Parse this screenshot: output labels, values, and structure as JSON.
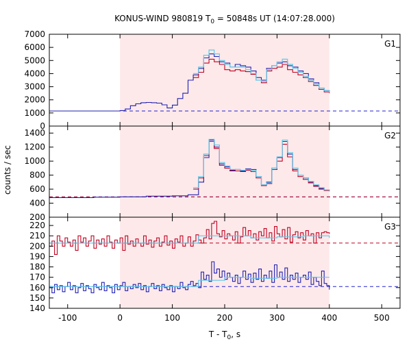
{
  "title": {
    "main": "KONUS-WIND 980819 T",
    "sub": "0",
    "rest": " = 50848s UT (14:07:28.000)"
  },
  "xlabel": {
    "main": "T - T",
    "sub": "0",
    "rest": ", s"
  },
  "ylabel": "counts / sec",
  "colors": {
    "highlight": "#fde9ea",
    "red": "#c00020",
    "blue": "#1f1fb0",
    "fit": "#5ec8ea",
    "bg_blue": "#2020d0",
    "bg_red": "#c00020"
  },
  "chart_data": [
    {
      "type": "line",
      "panel": "G1",
      "xlim": [
        -135,
        535
      ],
      "ylim": [
        0,
        7000
      ],
      "xticks": [
        -100,
        0,
        100,
        200,
        300,
        400,
        500
      ],
      "yticks": [
        0,
        1000,
        2000,
        3000,
        4000,
        5000,
        6000,
        7000
      ],
      "highlight": [
        0,
        400
      ],
      "background": [
        {
          "color": "blue",
          "value": 1150
        }
      ],
      "series": [
        {
          "color": "blue",
          "x": [
            -135,
            -60,
            0,
            10,
            20,
            30,
            40,
            50,
            60,
            70,
            80,
            90,
            100,
            110,
            120,
            130,
            140,
            150,
            160,
            170,
            180,
            190,
            200,
            210,
            220,
            230,
            240,
            250,
            260,
            270,
            280,
            290,
            300,
            310,
            320,
            330,
            340,
            350,
            360,
            370,
            380,
            390,
            400
          ],
          "y": [
            1150,
            1150,
            1180,
            1300,
            1550,
            1700,
            1780,
            1800,
            1780,
            1750,
            1620,
            1380,
            1600,
            2100,
            2500,
            3500,
            3900,
            4400,
            5200,
            5500,
            5300,
            4900,
            4800,
            4500,
            4700,
            4600,
            4500,
            4200,
            3700,
            3500,
            4400,
            4600,
            4800,
            4900,
            4600,
            4500,
            4200,
            4000,
            3600,
            3300,
            2900,
            2700,
            2600
          ]
        },
        {
          "color": "red",
          "x": [
            140,
            150,
            160,
            170,
            180,
            190,
            200,
            210,
            220,
            230,
            240,
            250,
            260,
            270,
            280,
            290,
            300,
            310,
            320,
            330,
            340,
            350,
            360,
            370,
            380,
            390,
            400
          ],
          "y": [
            3700,
            4100,
            4800,
            5100,
            4900,
            4700,
            4300,
            4200,
            4300,
            4200,
            4150,
            3950,
            3500,
            3300,
            4200,
            4400,
            4500,
            4700,
            4300,
            4100,
            3900,
            3700,
            3400,
            3100,
            2800,
            2600,
            2500
          ]
        },
        {
          "color": "fit",
          "x": [
            140,
            150,
            160,
            170,
            180,
            190,
            200,
            210,
            220,
            230,
            240,
            250,
            260,
            270,
            280,
            290,
            300,
            310,
            320,
            330,
            340,
            350,
            360,
            370,
            380,
            390,
            400
          ],
          "y": [
            4000,
            4500,
            5400,
            5800,
            5500,
            5000,
            4700,
            4500,
            4500,
            4500,
            4300,
            4000,
            3500,
            3400,
            4300,
            4600,
            4900,
            5100,
            4700,
            4400,
            4100,
            3800,
            3500,
            3200,
            2900,
            2700,
            2550
          ]
        }
      ]
    },
    {
      "type": "line",
      "panel": "G2",
      "xlim": [
        -135,
        535
      ],
      "ylim": [
        200,
        1500
      ],
      "xticks": [
        -100,
        0,
        100,
        200,
        300,
        400,
        500
      ],
      "yticks": [
        200,
        400,
        600,
        800,
        1000,
        1200,
        1400
      ],
      "highlight": [
        0,
        400
      ],
      "background": [
        {
          "color": "blue",
          "value": 490
        },
        {
          "color": "red",
          "value": 490
        }
      ],
      "series": [
        {
          "color": "blue",
          "x": [
            -135,
            -50,
            0,
            50,
            100,
            130,
            150,
            160,
            170,
            180,
            190,
            200,
            210,
            220,
            230,
            240,
            250,
            260,
            270,
            280,
            290,
            300,
            310,
            320,
            330,
            340,
            350,
            360,
            370,
            380,
            390,
            400
          ],
          "y": [
            480,
            485,
            490,
            500,
            505,
            520,
            700,
            1050,
            1300,
            1200,
            960,
            920,
            870,
            880,
            860,
            890,
            880,
            780,
            660,
            700,
            900,
            1050,
            1280,
            1100,
            880,
            800,
            760,
            700,
            650,
            610,
            590,
            580
          ]
        },
        {
          "color": "red",
          "x": [
            140,
            150,
            160,
            170,
            180,
            190,
            200,
            210,
            220,
            230,
            240,
            250,
            260,
            270,
            280,
            290,
            300,
            310,
            320,
            330,
            340,
            350,
            360,
            370,
            380,
            390,
            400
          ],
          "y": [
            600,
            760,
            1080,
            1280,
            1180,
            940,
            900,
            860,
            860,
            850,
            870,
            850,
            760,
            650,
            680,
            880,
            1000,
            1240,
            1060,
            860,
            780,
            740,
            690,
            640,
            600,
            580,
            570
          ]
        },
        {
          "color": "fit",
          "x": [
            140,
            150,
            160,
            170,
            180,
            190,
            200,
            210,
            220,
            230,
            240,
            250,
            260,
            270,
            280,
            290,
            300,
            310,
            320,
            330,
            340,
            350,
            360,
            370,
            380,
            390,
            400
          ],
          "y": [
            620,
            780,
            1100,
            1310,
            1230,
            980,
            930,
            880,
            880,
            870,
            880,
            870,
            780,
            660,
            690,
            900,
            1060,
            1300,
            1120,
            900,
            800,
            760,
            710,
            660,
            620,
            590,
            575
          ]
        }
      ]
    },
    {
      "type": "line",
      "panel": "G3",
      "xlim": [
        -135,
        535
      ],
      "ylim": [
        140,
        228
      ],
      "xticks": [
        -100,
        0,
        100,
        200,
        300,
        400,
        500
      ],
      "yticks": [
        140,
        150,
        160,
        170,
        180,
        190,
        200,
        210,
        220
      ],
      "highlight": [
        0,
        400
      ],
      "background": [
        {
          "color": "red",
          "value": 203
        },
        {
          "color": "blue",
          "value": 161
        }
      ],
      "series": [
        {
          "color": "red",
          "x": [
            -135,
            -130,
            -125,
            -120,
            -115,
            -110,
            -105,
            -100,
            -95,
            -90,
            -85,
            -80,
            -75,
            -70,
            -65,
            -60,
            -55,
            -50,
            -45,
            -40,
            -35,
            -30,
            -25,
            -20,
            -15,
            -10,
            -5,
            0,
            5,
            10,
            15,
            20,
            25,
            30,
            35,
            40,
            45,
            50,
            55,
            60,
            65,
            70,
            75,
            80,
            85,
            90,
            95,
            100,
            105,
            110,
            115,
            120,
            125,
            130,
            135,
            140,
            145,
            150,
            155,
            160,
            165,
            170,
            175,
            180,
            185,
            190,
            195,
            200,
            205,
            210,
            215,
            220,
            225,
            230,
            235,
            240,
            245,
            250,
            255,
            260,
            265,
            270,
            275,
            280,
            285,
            290,
            295,
            300,
            305,
            310,
            315,
            320,
            325,
            330,
            335,
            340,
            345,
            350,
            355,
            360,
            365,
            370,
            375,
            380,
            385,
            390,
            395,
            400
          ],
          "y": [
            200,
            205,
            192,
            210,
            205,
            200,
            208,
            204,
            200,
            206,
            196,
            210,
            204,
            208,
            200,
            205,
            210,
            198,
            206,
            202,
            207,
            200,
            210,
            204,
            198,
            206,
            203,
            208,
            196,
            210,
            202,
            205,
            200,
            207,
            203,
            200,
            210,
            202,
            206,
            199,
            205,
            208,
            200,
            204,
            210,
            201,
            205,
            198,
            207,
            204,
            210,
            200,
            203,
            209,
            200,
            205,
            211,
            206,
            203,
            208,
            216,
            207,
            222,
            224,
            212,
            209,
            215,
            207,
            212,
            210,
            206,
            214,
            203,
            209,
            218,
            210,
            215,
            208,
            212,
            206,
            214,
            210,
            217,
            208,
            213,
            205,
            219,
            212,
            209,
            216,
            207,
            218,
            204,
            211,
            214,
            208,
            213,
            206,
            215,
            210,
            212,
            203,
            213,
            208,
            213,
            214,
            213,
            212
          ]
        },
        {
          "color": "blue",
          "x": [
            -135,
            -130,
            -125,
            -120,
            -115,
            -110,
            -105,
            -100,
            -95,
            -90,
            -85,
            -80,
            -75,
            -70,
            -65,
            -60,
            -55,
            -50,
            -45,
            -40,
            -35,
            -30,
            -25,
            -20,
            -15,
            -10,
            -5,
            0,
            5,
            10,
            15,
            20,
            25,
            30,
            35,
            40,
            45,
            50,
            55,
            60,
            65,
            70,
            75,
            80,
            85,
            90,
            95,
            100,
            105,
            110,
            115,
            120,
            125,
            130,
            135,
            140,
            145,
            150,
            155,
            160,
            165,
            170,
            175,
            180,
            185,
            190,
            195,
            200,
            205,
            210,
            215,
            220,
            225,
            230,
            235,
            240,
            245,
            250,
            255,
            260,
            265,
            270,
            275,
            280,
            285,
            290,
            295,
            300,
            305,
            310,
            315,
            320,
            325,
            330,
            335,
            340,
            345,
            350,
            355,
            360,
            365,
            370,
            375,
            380,
            385,
            390,
            395,
            400
          ],
          "y": [
            160,
            155,
            163,
            158,
            162,
            156,
            161,
            165,
            158,
            162,
            155,
            160,
            164,
            157,
            162,
            159,
            155,
            163,
            160,
            158,
            165,
            157,
            162,
            160,
            155,
            163,
            158,
            162,
            165,
            157,
            161,
            159,
            163,
            160,
            164,
            158,
            162,
            156,
            161,
            164,
            159,
            162,
            157,
            163,
            160,
            158,
            162,
            156,
            161,
            159,
            165,
            160,
            158,
            163,
            166,
            162,
            164,
            160,
            175,
            168,
            172,
            166,
            185,
            174,
            178,
            170,
            176,
            168,
            174,
            170,
            166,
            172,
            164,
            170,
            176,
            168,
            173,
            165,
            174,
            168,
            178,
            166,
            172,
            169,
            176,
            165,
            182,
            170,
            175,
            168,
            179,
            166,
            172,
            168,
            174,
            165,
            170,
            172,
            168,
            175,
            163,
            170,
            166,
            162,
            176,
            164,
            162,
            158
          ]
        },
        {
          "color": "fit",
          "x": [
            -135,
            140,
            150,
            200,
            250,
            300,
            350,
            400
          ],
          "y": [
            203,
            203,
            210,
            210,
            208,
            209,
            210,
            208
          ]
        },
        {
          "color": "fit",
          "x": [
            -135,
            140,
            150,
            200,
            250,
            300,
            350,
            400
          ],
          "y": [
            161,
            161,
            167,
            170,
            169,
            170,
            170,
            170
          ]
        }
      ]
    }
  ],
  "panel_tags": [
    "G1",
    "G2",
    "G3"
  ]
}
